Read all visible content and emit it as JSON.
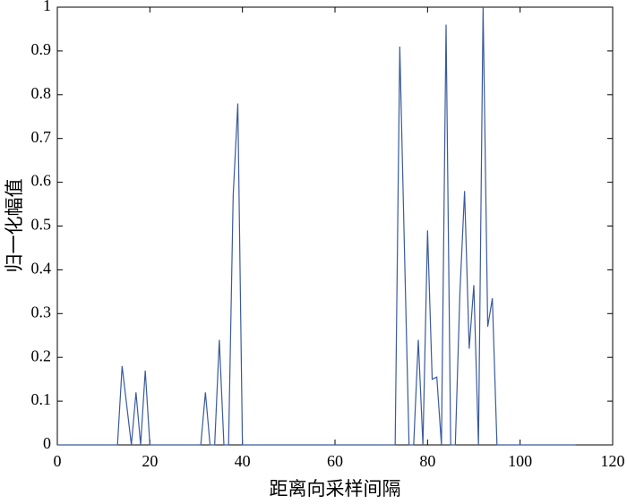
{
  "chart_data": {
    "type": "line",
    "xlabel": "距离向采样间隔",
    "ylabel": "归一化幅值",
    "x": [
      0,
      1,
      2,
      3,
      4,
      5,
      6,
      7,
      8,
      9,
      10,
      11,
      12,
      13,
      14,
      15,
      16,
      17,
      18,
      19,
      20,
      21,
      22,
      23,
      24,
      25,
      26,
      27,
      28,
      29,
      30,
      31,
      32,
      33,
      34,
      35,
      36,
      37,
      38,
      39,
      40,
      41,
      42,
      43,
      44,
      45,
      46,
      47,
      48,
      49,
      50,
      51,
      52,
      53,
      54,
      55,
      56,
      57,
      58,
      59,
      60,
      61,
      62,
      63,
      64,
      65,
      66,
      67,
      68,
      69,
      70,
      71,
      72,
      73,
      74,
      75,
      76,
      77,
      78,
      79,
      80,
      81,
      82,
      83,
      84,
      85,
      86,
      87,
      88,
      89,
      90,
      91,
      92,
      93,
      94,
      95,
      96,
      97,
      98,
      99,
      100,
      101,
      102,
      103,
      104,
      105,
      106,
      107,
      108,
      109,
      110,
      111,
      112
    ],
    "series": [
      {
        "color": "#3a5a9c",
        "values": [
          0,
          0,
          0,
          0,
          0,
          0,
          0,
          0,
          0,
          0,
          0,
          0,
          0,
          0,
          0.18,
          0.09,
          0,
          0.12,
          0,
          0.17,
          0,
          0,
          0,
          0,
          0,
          0,
          0,
          0,
          0,
          0,
          0,
          0,
          0.12,
          0,
          0,
          0.24,
          0,
          0,
          0.57,
          0.78,
          0,
          0,
          0,
          0,
          0,
          0,
          0,
          0,
          0,
          0,
          0,
          0,
          0,
          0,
          0,
          0,
          0,
          0,
          0,
          0,
          0,
          0,
          0,
          0,
          0,
          0,
          0,
          0,
          0,
          0,
          0,
          0,
          0,
          0,
          0.91,
          0.45,
          0,
          0,
          0.24,
          0,
          0.49,
          0.15,
          0.155,
          0,
          0.96,
          0,
          0,
          0.35,
          0.58,
          0.22,
          0.365,
          0,
          1,
          0.27,
          0.335,
          0,
          0,
          0,
          0,
          0,
          0,
          0,
          0,
          0,
          0,
          0,
          0,
          0,
          0,
          0,
          0,
          0,
          0
        ]
      }
    ],
    "xlim": [
      0,
      120
    ],
    "xticks": [
      0,
      20,
      40,
      60,
      80,
      100,
      120
    ],
    "ylim": [
      0,
      1
    ],
    "yticks": [
      0,
      0.1,
      0.2,
      0.3,
      0.4,
      0.5,
      0.6,
      0.7,
      0.8,
      0.9,
      1
    ]
  }
}
